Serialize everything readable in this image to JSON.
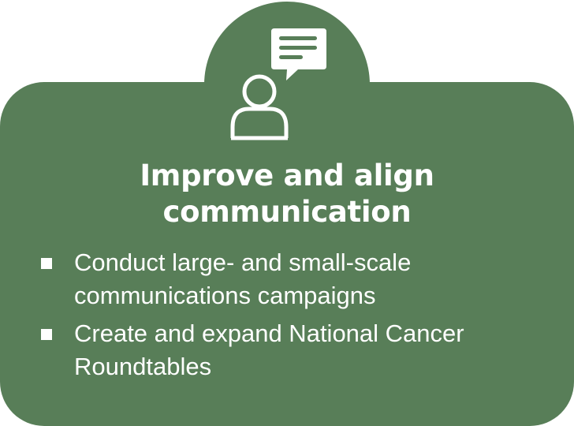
{
  "colors": {
    "card_background": "#587e58",
    "foreground": "#ffffff"
  },
  "icons": [
    "person-speaking-icon",
    "speech-bubble-icon"
  ],
  "title": {
    "line1": "Improve and align",
    "line2": "communication"
  },
  "bullets": [
    {
      "line1": "Conduct large- and small-scale",
      "line2": "communications campaigns"
    },
    {
      "line1": "Create and expand National Cancer",
      "line2": "Roundtables"
    }
  ]
}
